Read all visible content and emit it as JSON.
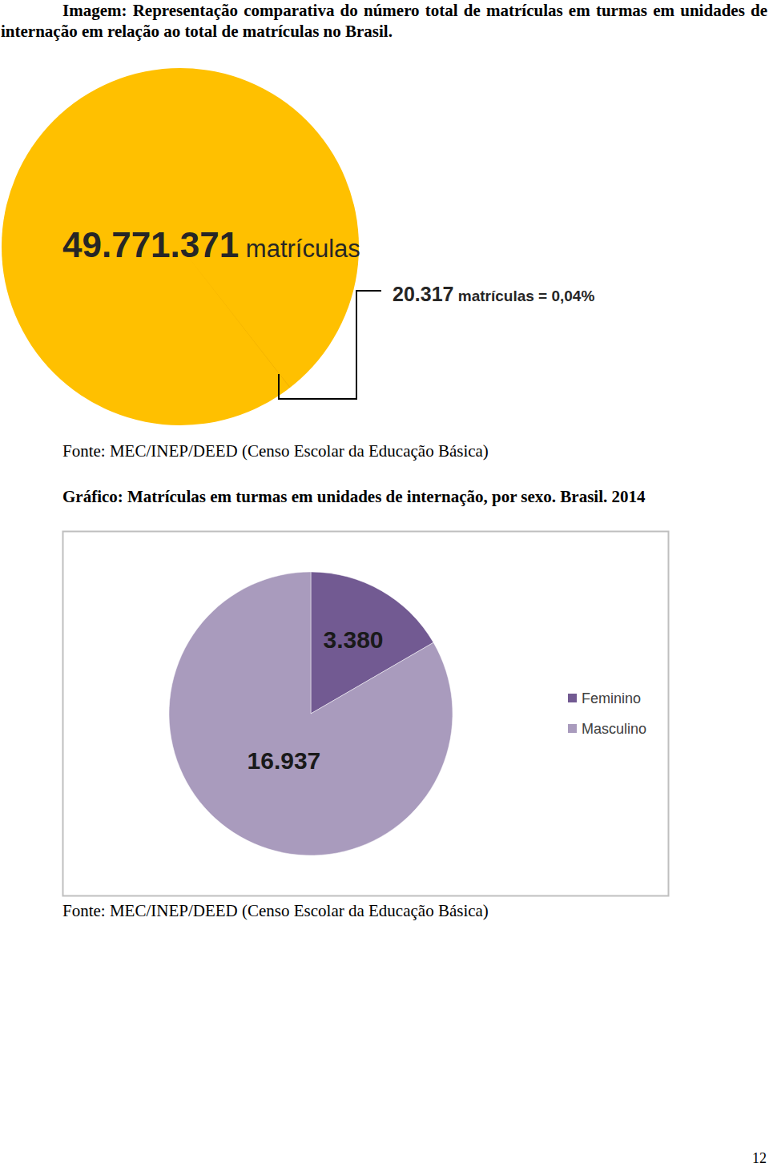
{
  "chart_data": [
    {
      "type": "proportion",
      "title": "Imagem: Representação comparativa do número total de matrículas em turmas em unidades de internação em relação ao total de matrículas no Brasil.",
      "values": [
        49771371,
        20317
      ],
      "value_labels": [
        "49.771.371 matrículas",
        "20.317 matrículas = 0,04%"
      ],
      "colors": [
        "#ffc000",
        "#e9a900"
      ],
      "data_labels": true,
      "source": "Fonte: MEC/INEP/DEED (Censo Escolar da Educação Básica)"
    },
    {
      "type": "pie",
      "title": "Gráfico: Matrículas em turmas em unidades de internação, por sexo. Brasil. 2014",
      "categories": [
        "Feminino",
        "Masculino"
      ],
      "values": [
        3380,
        16937
      ],
      "value_labels": [
        "3.380",
        "16.937"
      ],
      "colors": [
        "#725a92",
        "#a99bbd"
      ],
      "data_labels": true,
      "legend": "right",
      "source": "Fonte: MEC/INEP/DEED (Censo Escolar da Educação Básica)"
    }
  ],
  "page_number": "12"
}
